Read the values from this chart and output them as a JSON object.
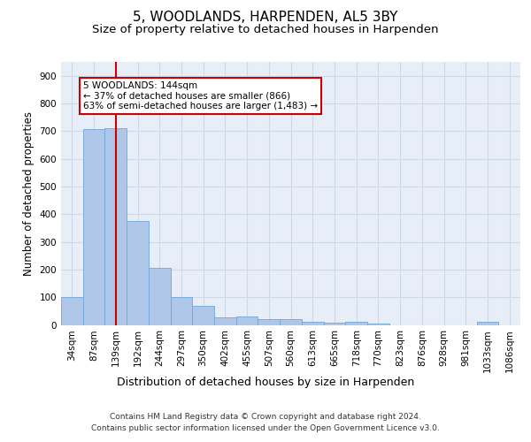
{
  "title": "5, WOODLANDS, HARPENDEN, AL5 3BY",
  "subtitle": "Size of property relative to detached houses in Harpenden",
  "xlabel": "Distribution of detached houses by size in Harpenden",
  "ylabel": "Number of detached properties",
  "categories": [
    "34sqm",
    "87sqm",
    "139sqm",
    "192sqm",
    "244sqm",
    "297sqm",
    "350sqm",
    "402sqm",
    "455sqm",
    "507sqm",
    "560sqm",
    "613sqm",
    "665sqm",
    "718sqm",
    "770sqm",
    "823sqm",
    "876sqm",
    "928sqm",
    "981sqm",
    "1033sqm",
    "1086sqm"
  ],
  "values": [
    100,
    706,
    711,
    375,
    205,
    100,
    70,
    28,
    30,
    20,
    20,
    10,
    8,
    10,
    5,
    0,
    0,
    0,
    0,
    10,
    0
  ],
  "bar_color": "#aec6e8",
  "bar_edge_color": "#6fa8d8",
  "vline_x_index": 2,
  "vline_color": "#cc0000",
  "annotation_text": "5 WOODLANDS: 144sqm\n← 37% of detached houses are smaller (866)\n63% of semi-detached houses are larger (1,483) →",
  "annotation_box_color": "#ffffff",
  "annotation_box_edge_color": "#cc0000",
  "ylim": [
    0,
    950
  ],
  "yticks": [
    0,
    100,
    200,
    300,
    400,
    500,
    600,
    700,
    800,
    900
  ],
  "grid_color": "#d0d8e8",
  "background_color": "#e8eef8",
  "footer_line1": "Contains HM Land Registry data © Crown copyright and database right 2024.",
  "footer_line2": "Contains public sector information licensed under the Open Government Licence v3.0.",
  "title_fontsize": 11,
  "subtitle_fontsize": 9.5,
  "xlabel_fontsize": 9,
  "ylabel_fontsize": 8.5,
  "tick_fontsize": 7.5,
  "footer_fontsize": 6.5
}
